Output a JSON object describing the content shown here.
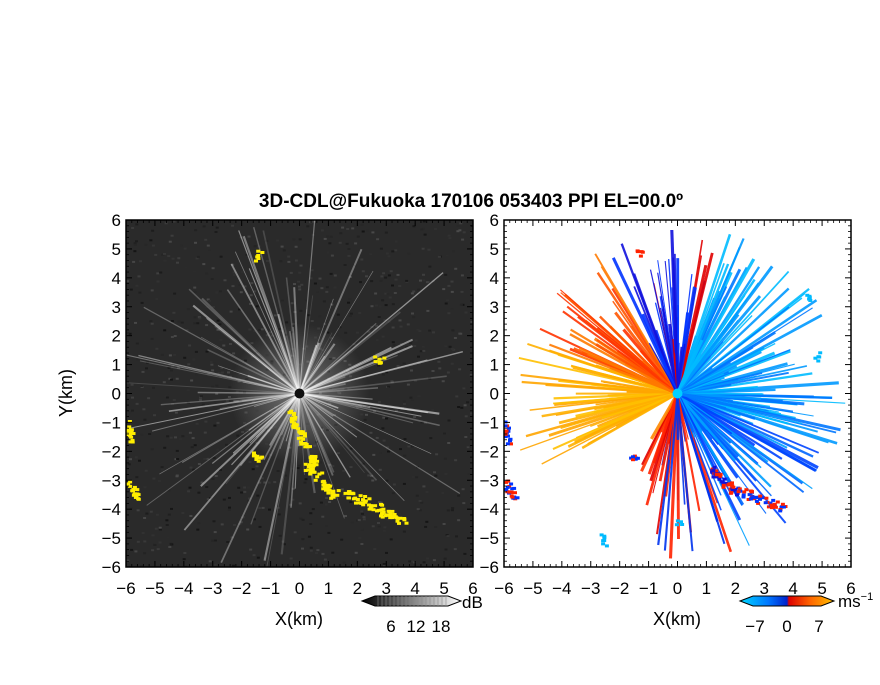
{
  "title": "3D-CDL@Fukuoka 170106 053403 PPI EL=00.0º",
  "chart_data": [
    {
      "type": "heatmap",
      "panel": "left",
      "xlabel": "X(km)",
      "ylabel": "Y(km)",
      "xlim": [
        -6,
        6
      ],
      "ylim": [
        -6,
        6
      ],
      "x_ticks": [
        "−6",
        "−5",
        "−4",
        "−3",
        "−2",
        "−1",
        "0",
        "1",
        "2",
        "3",
        "4",
        "5",
        "6"
      ],
      "y_ticks": [
        "6",
        "5",
        "4",
        "3",
        "2",
        "1",
        "0",
        "−1",
        "−2",
        "−3",
        "−4",
        "−5",
        "−6"
      ],
      "colorbar": {
        "unit": "dB",
        "ticks": [
          "6",
          "12",
          "18"
        ],
        "colors": [
          "#000000",
          "#ffffff"
        ]
      },
      "background_color": "#2b2b2b",
      "highlight_color": "#ffee00"
    },
    {
      "type": "heatmap",
      "panel": "right",
      "xlabel": "X(km)",
      "ylabel": "",
      "xlim": [
        -6,
        6
      ],
      "ylim": [
        -6,
        6
      ],
      "x_ticks": [
        "−6",
        "−5",
        "−4",
        "−3",
        "−2",
        "−1",
        "0",
        "1",
        "2",
        "3",
        "4",
        "5",
        "6"
      ],
      "y_ticks": [
        "6",
        "5",
        "4",
        "3",
        "2",
        "1",
        "0",
        "−1",
        "−2",
        "−3",
        "−4",
        "−5",
        "−6"
      ],
      "colorbar": {
        "unit": "ms",
        "unit_sup": "−1",
        "ticks": [
          "−7",
          "0",
          "7"
        ],
        "colors": [
          "#00ccff",
          "#0044ff",
          "#ff2200",
          "#ffaa00"
        ]
      }
    }
  ]
}
